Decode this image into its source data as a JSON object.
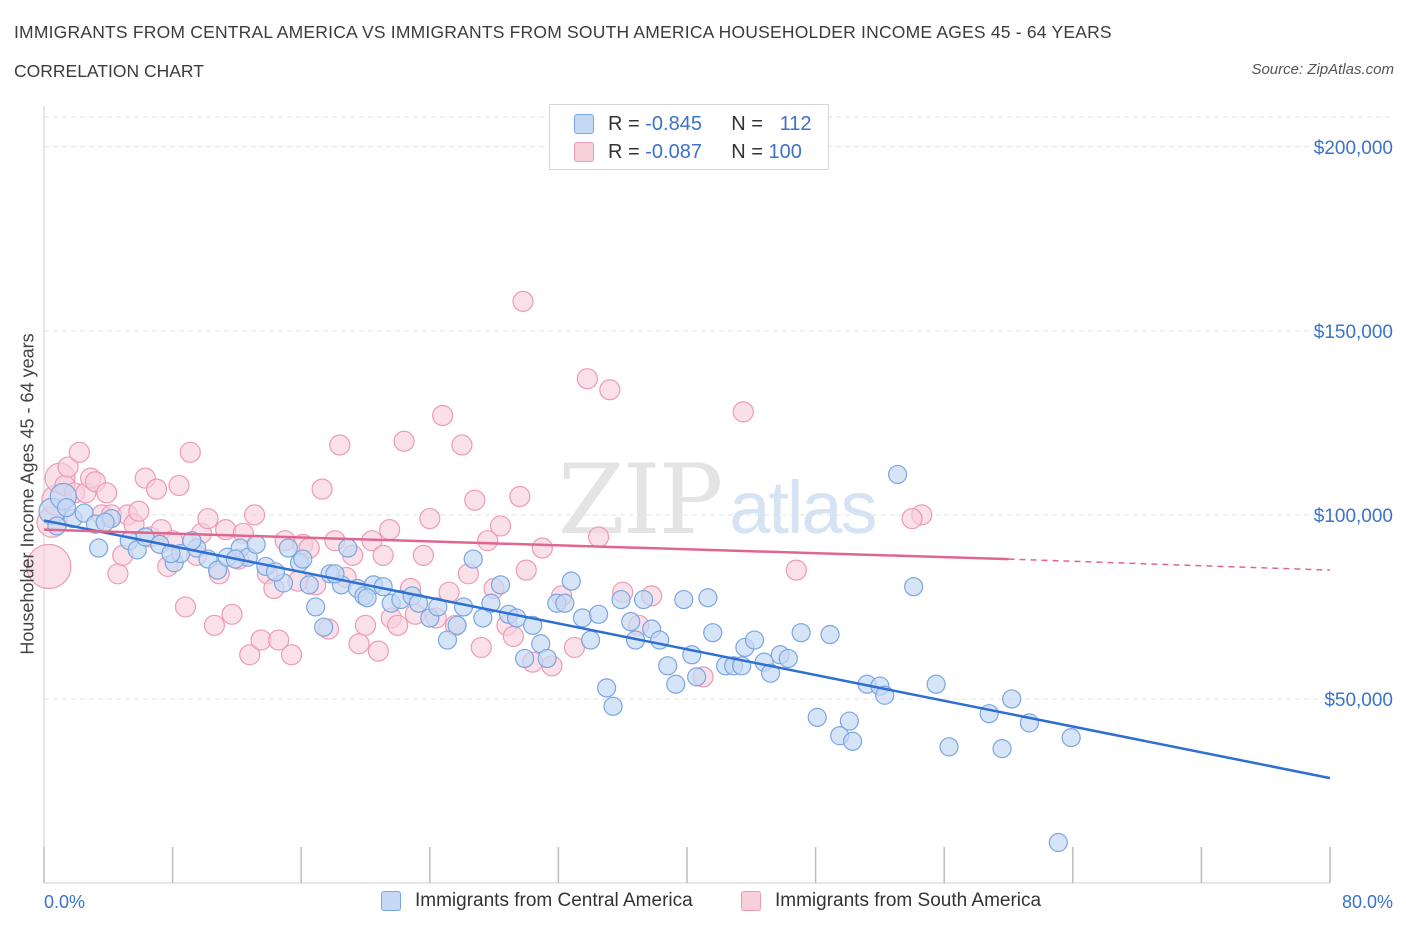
{
  "header": {
    "title": "IMMIGRANTS FROM CENTRAL AMERICA VS IMMIGRANTS FROM SOUTH AMERICA HOUSEHOLDER INCOME AGES 45 - 64 YEARS",
    "subtitle": "CORRELATION CHART",
    "source": "Source: ZipAtlas.com"
  },
  "watermark": {
    "zip": "ZIP",
    "atlas": "atlas"
  },
  "legend": {
    "central": {
      "r_label": "R =",
      "r_value": "-0.845",
      "n_label": "N =",
      "n_value": "112"
    },
    "south": {
      "r_label": "R =",
      "r_value": "-0.087",
      "n_label": "N =",
      "n_value": "100"
    }
  },
  "colors": {
    "central_fill": "#c5d9f4",
    "central_stroke": "#7aa6e0",
    "central_line": "#2e6fd0",
    "south_fill": "#f8d0dc",
    "south_stroke": "#ee9ab4",
    "south_line": "#e0668f",
    "axis_text": "#3a73c9",
    "grid": "#e2e2e2"
  },
  "chart_data": {
    "type": "scatter",
    "title": "IMMIGRANTS FROM CENTRAL AMERICA VS IMMIGRANTS FROM SOUTH AMERICA HOUSEHOLDER INCOME AGES 45 - 64 YEARS",
    "xlabel": "",
    "ylabel": "Householder Income Ages 45 - 64 years",
    "xlim": [
      0,
      80
    ],
    "ylim": [
      0,
      210000
    ],
    "x_tick_labels": [
      "0.0%",
      "80.0%"
    ],
    "y_ticks": [
      50000,
      100000,
      150000,
      200000
    ],
    "y_tick_labels": [
      "$50,000",
      "$100,000",
      "$150,000",
      "$200,000"
    ],
    "grid": true,
    "legend_position": "top-center",
    "series": [
      {
        "name": "Immigrants from Central America",
        "R": -0.845,
        "N": 112,
        "trend": {
          "x": [
            0,
            80
          ],
          "y": [
            98500,
            28500
          ]
        },
        "points": [
          [
            0.5,
            101000
          ],
          [
            1.2,
            105000
          ],
          [
            1.8,
            99000
          ],
          [
            2.5,
            100500
          ],
          [
            3.2,
            97500
          ],
          [
            3.4,
            91000
          ],
          [
            4.2,
            99000
          ],
          [
            5.3,
            93000
          ],
          [
            5.8,
            90500
          ],
          [
            6.3,
            94000
          ],
          [
            7.2,
            92000
          ],
          [
            8.1,
            87000
          ],
          [
            8.5,
            89500
          ],
          [
            9.5,
            91000
          ],
          [
            10.2,
            88000
          ],
          [
            10.8,
            85000
          ],
          [
            11.4,
            88500
          ],
          [
            12.2,
            91000
          ],
          [
            12.7,
            88500
          ],
          [
            13.8,
            86000
          ],
          [
            14.9,
            81500
          ],
          [
            15.2,
            91000
          ],
          [
            15.9,
            87000
          ],
          [
            16.5,
            81000
          ],
          [
            16.9,
            75000
          ],
          [
            17.4,
            69500
          ],
          [
            17.8,
            84000
          ],
          [
            18.5,
            81000
          ],
          [
            18.9,
            91000
          ],
          [
            19.5,
            80000
          ],
          [
            19.9,
            78000
          ],
          [
            20.5,
            81000
          ],
          [
            21.1,
            80500
          ],
          [
            21.6,
            76000
          ],
          [
            22.2,
            77000
          ],
          [
            22.9,
            78000
          ],
          [
            23.3,
            76000
          ],
          [
            24.0,
            72000
          ],
          [
            24.5,
            75000
          ],
          [
            25.1,
            66000
          ],
          [
            25.7,
            70000
          ],
          [
            26.1,
            75000
          ],
          [
            26.7,
            88000
          ],
          [
            27.3,
            72000
          ],
          [
            27.8,
            76000
          ],
          [
            28.4,
            81000
          ],
          [
            28.9,
            73000
          ],
          [
            29.4,
            72000
          ],
          [
            29.9,
            61000
          ],
          [
            30.4,
            70000
          ],
          [
            30.9,
            65000
          ],
          [
            31.3,
            61000
          ],
          [
            31.9,
            76000
          ],
          [
            32.4,
            76000
          ],
          [
            32.8,
            82000
          ],
          [
            33.5,
            72000
          ],
          [
            34.0,
            66000
          ],
          [
            34.5,
            73000
          ],
          [
            35.0,
            53000
          ],
          [
            35.4,
            48000
          ],
          [
            35.9,
            77000
          ],
          [
            36.5,
            71000
          ],
          [
            36.8,
            66000
          ],
          [
            37.3,
            77000
          ],
          [
            37.8,
            69000
          ],
          [
            38.3,
            66000
          ],
          [
            38.8,
            59000
          ],
          [
            39.3,
            54000
          ],
          [
            39.8,
            77000
          ],
          [
            40.3,
            62000
          ],
          [
            40.6,
            56000
          ],
          [
            41.3,
            77500
          ],
          [
            41.6,
            68000
          ],
          [
            42.4,
            59000
          ],
          [
            42.9,
            59000
          ],
          [
            43.4,
            59000
          ],
          [
            43.6,
            64000
          ],
          [
            44.2,
            66000
          ],
          [
            44.8,
            60000
          ],
          [
            45.2,
            57000
          ],
          [
            45.8,
            62000
          ],
          [
            46.3,
            61000
          ],
          [
            47.1,
            68000
          ],
          [
            48.1,
            45000
          ],
          [
            48.9,
            67500
          ],
          [
            49.5,
            40000
          ],
          [
            50.1,
            44000
          ],
          [
            50.3,
            38500
          ],
          [
            51.2,
            54000
          ],
          [
            52.0,
            53500
          ],
          [
            52.3,
            51000
          ],
          [
            53.1,
            111000
          ],
          [
            54.1,
            80500
          ],
          [
            55.5,
            54000
          ],
          [
            56.3,
            37000
          ],
          [
            58.8,
            46000
          ],
          [
            59.6,
            36500
          ],
          [
            60.2,
            50000
          ],
          [
            61.3,
            43500
          ],
          [
            63.9,
            39500
          ],
          [
            63.1,
            11000
          ],
          [
            0.8,
            97000
          ],
          [
            1.4,
            102000
          ],
          [
            3.8,
            98000
          ],
          [
            7.9,
            89500
          ],
          [
            9.2,
            93000
          ],
          [
            11.9,
            88000
          ],
          [
            13.2,
            92000
          ],
          [
            14.4,
            84500
          ],
          [
            16.1,
            88000
          ],
          [
            18.1,
            84000
          ],
          [
            20.1,
            77500
          ]
        ]
      },
      {
        "name": "Immigrants from South America",
        "R": -0.087,
        "N": 100,
        "trend": {
          "x": [
            0,
            60
          ],
          "y": [
            96000,
            88000
          ]
        },
        "trend_dashed": {
          "x": [
            60,
            80
          ],
          "y": [
            88000,
            85000
          ]
        },
        "points": [
          [
            0.3,
            86000
          ],
          [
            0.5,
            98000
          ],
          [
            0.8,
            104000
          ],
          [
            1.0,
            110000
          ],
          [
            1.3,
            108000
          ],
          [
            1.5,
            113000
          ],
          [
            1.9,
            106000
          ],
          [
            2.2,
            117000
          ],
          [
            2.6,
            106000
          ],
          [
            2.9,
            110000
          ],
          [
            3.2,
            109000
          ],
          [
            3.6,
            100000
          ],
          [
            3.9,
            106000
          ],
          [
            4.2,
            100000
          ],
          [
            4.6,
            84000
          ],
          [
            4.9,
            89000
          ],
          [
            5.2,
            100000
          ],
          [
            5.6,
            97500
          ],
          [
            5.9,
            101000
          ],
          [
            6.3,
            110000
          ],
          [
            6.6,
            94000
          ],
          [
            7.0,
            107000
          ],
          [
            7.3,
            96000
          ],
          [
            7.7,
            86000
          ],
          [
            8.0,
            93000
          ],
          [
            8.4,
            108000
          ],
          [
            8.8,
            75000
          ],
          [
            9.1,
            117000
          ],
          [
            9.5,
            89000
          ],
          [
            9.8,
            95000
          ],
          [
            10.2,
            99000
          ],
          [
            10.6,
            70000
          ],
          [
            10.9,
            84000
          ],
          [
            11.3,
            96000
          ],
          [
            11.7,
            73000
          ],
          [
            12.1,
            88000
          ],
          [
            12.4,
            95000
          ],
          [
            12.8,
            62000
          ],
          [
            13.1,
            100000
          ],
          [
            13.5,
            66000
          ],
          [
            13.9,
            84000
          ],
          [
            14.3,
            80000
          ],
          [
            14.6,
            66000
          ],
          [
            15.0,
            93000
          ],
          [
            15.4,
            62000
          ],
          [
            15.8,
            82000
          ],
          [
            16.1,
            92000
          ],
          [
            16.5,
            91000
          ],
          [
            16.9,
            81000
          ],
          [
            17.3,
            107000
          ],
          [
            17.7,
            69000
          ],
          [
            18.1,
            93000
          ],
          [
            18.4,
            119000
          ],
          [
            18.8,
            83000
          ],
          [
            19.2,
            89000
          ],
          [
            19.6,
            65000
          ],
          [
            20.0,
            70000
          ],
          [
            20.4,
            93000
          ],
          [
            20.8,
            63000
          ],
          [
            21.1,
            89000
          ],
          [
            21.6,
            72000
          ],
          [
            22.0,
            70000
          ],
          [
            22.4,
            120000
          ],
          [
            22.8,
            80000
          ],
          [
            23.1,
            73000
          ],
          [
            23.6,
            89000
          ],
          [
            24.0,
            99000
          ],
          [
            24.4,
            72000
          ],
          [
            24.8,
            127000
          ],
          [
            25.2,
            79000
          ],
          [
            25.6,
            70000
          ],
          [
            26.0,
            119000
          ],
          [
            26.4,
            84000
          ],
          [
            26.8,
            104000
          ],
          [
            27.2,
            64000
          ],
          [
            27.6,
            93000
          ],
          [
            28.0,
            80000
          ],
          [
            28.4,
            97000
          ],
          [
            28.8,
            70000
          ],
          [
            29.2,
            67000
          ],
          [
            29.6,
            105000
          ],
          [
            30.0,
            85000
          ],
          [
            30.4,
            60000
          ],
          [
            31.0,
            91000
          ],
          [
            31.6,
            59000
          ],
          [
            32.2,
            78000
          ],
          [
            33.0,
            64000
          ],
          [
            33.8,
            137000
          ],
          [
            34.5,
            94000
          ],
          [
            35.2,
            134000
          ],
          [
            36.0,
            79000
          ],
          [
            37.0,
            70000
          ],
          [
            37.8,
            78000
          ],
          [
            29.8,
            158000
          ],
          [
            41.0,
            56000
          ],
          [
            43.5,
            128000
          ],
          [
            46.8,
            85000
          ],
          [
            54.6,
            100000
          ],
          [
            54.0,
            99000
          ],
          [
            21.5,
            96000
          ]
        ]
      }
    ]
  }
}
